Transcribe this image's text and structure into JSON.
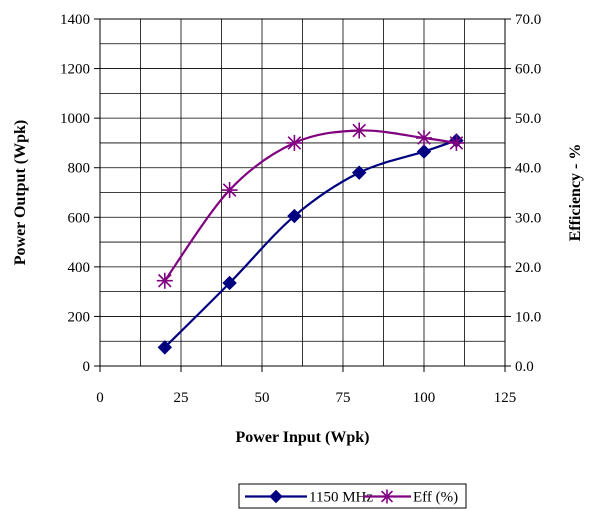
{
  "chart_data": {
    "type": "line",
    "xlabel": "Power Input (Wpk)",
    "ylabel": "Power Output (Wpk)",
    "y2label": "Efficiency - %",
    "xlim": [
      0,
      125
    ],
    "ylim": [
      0,
      1400
    ],
    "y2lim": [
      0,
      70
    ],
    "xticks": [
      "0",
      "25",
      "50",
      "75",
      "100",
      "125"
    ],
    "yticks": [
      "0",
      "200",
      "400",
      "600",
      "800",
      "1000",
      "1200",
      "1400"
    ],
    "y2ticks": [
      "0.0",
      "10.0",
      "20.0",
      "30.0",
      "40.0",
      "50.0",
      "60.0",
      "70.0"
    ],
    "grid": true,
    "legend_position": "bottom-center",
    "series": [
      {
        "name": "1150 MHz",
        "axis": "left",
        "marker": "diamond",
        "color": "#000080",
        "x": [
          20,
          40,
          60,
          80,
          100,
          110
        ],
        "y": [
          75,
          335,
          605,
          780,
          865,
          910
        ]
      },
      {
        "name": "Eff (%)",
        "axis": "right",
        "marker": "asterisk",
        "color": "#800080",
        "x": [
          20,
          40,
          60,
          80,
          100,
          110
        ],
        "y": [
          17.2,
          35.5,
          45.0,
          47.5,
          46.0,
          45.0
        ]
      }
    ]
  }
}
